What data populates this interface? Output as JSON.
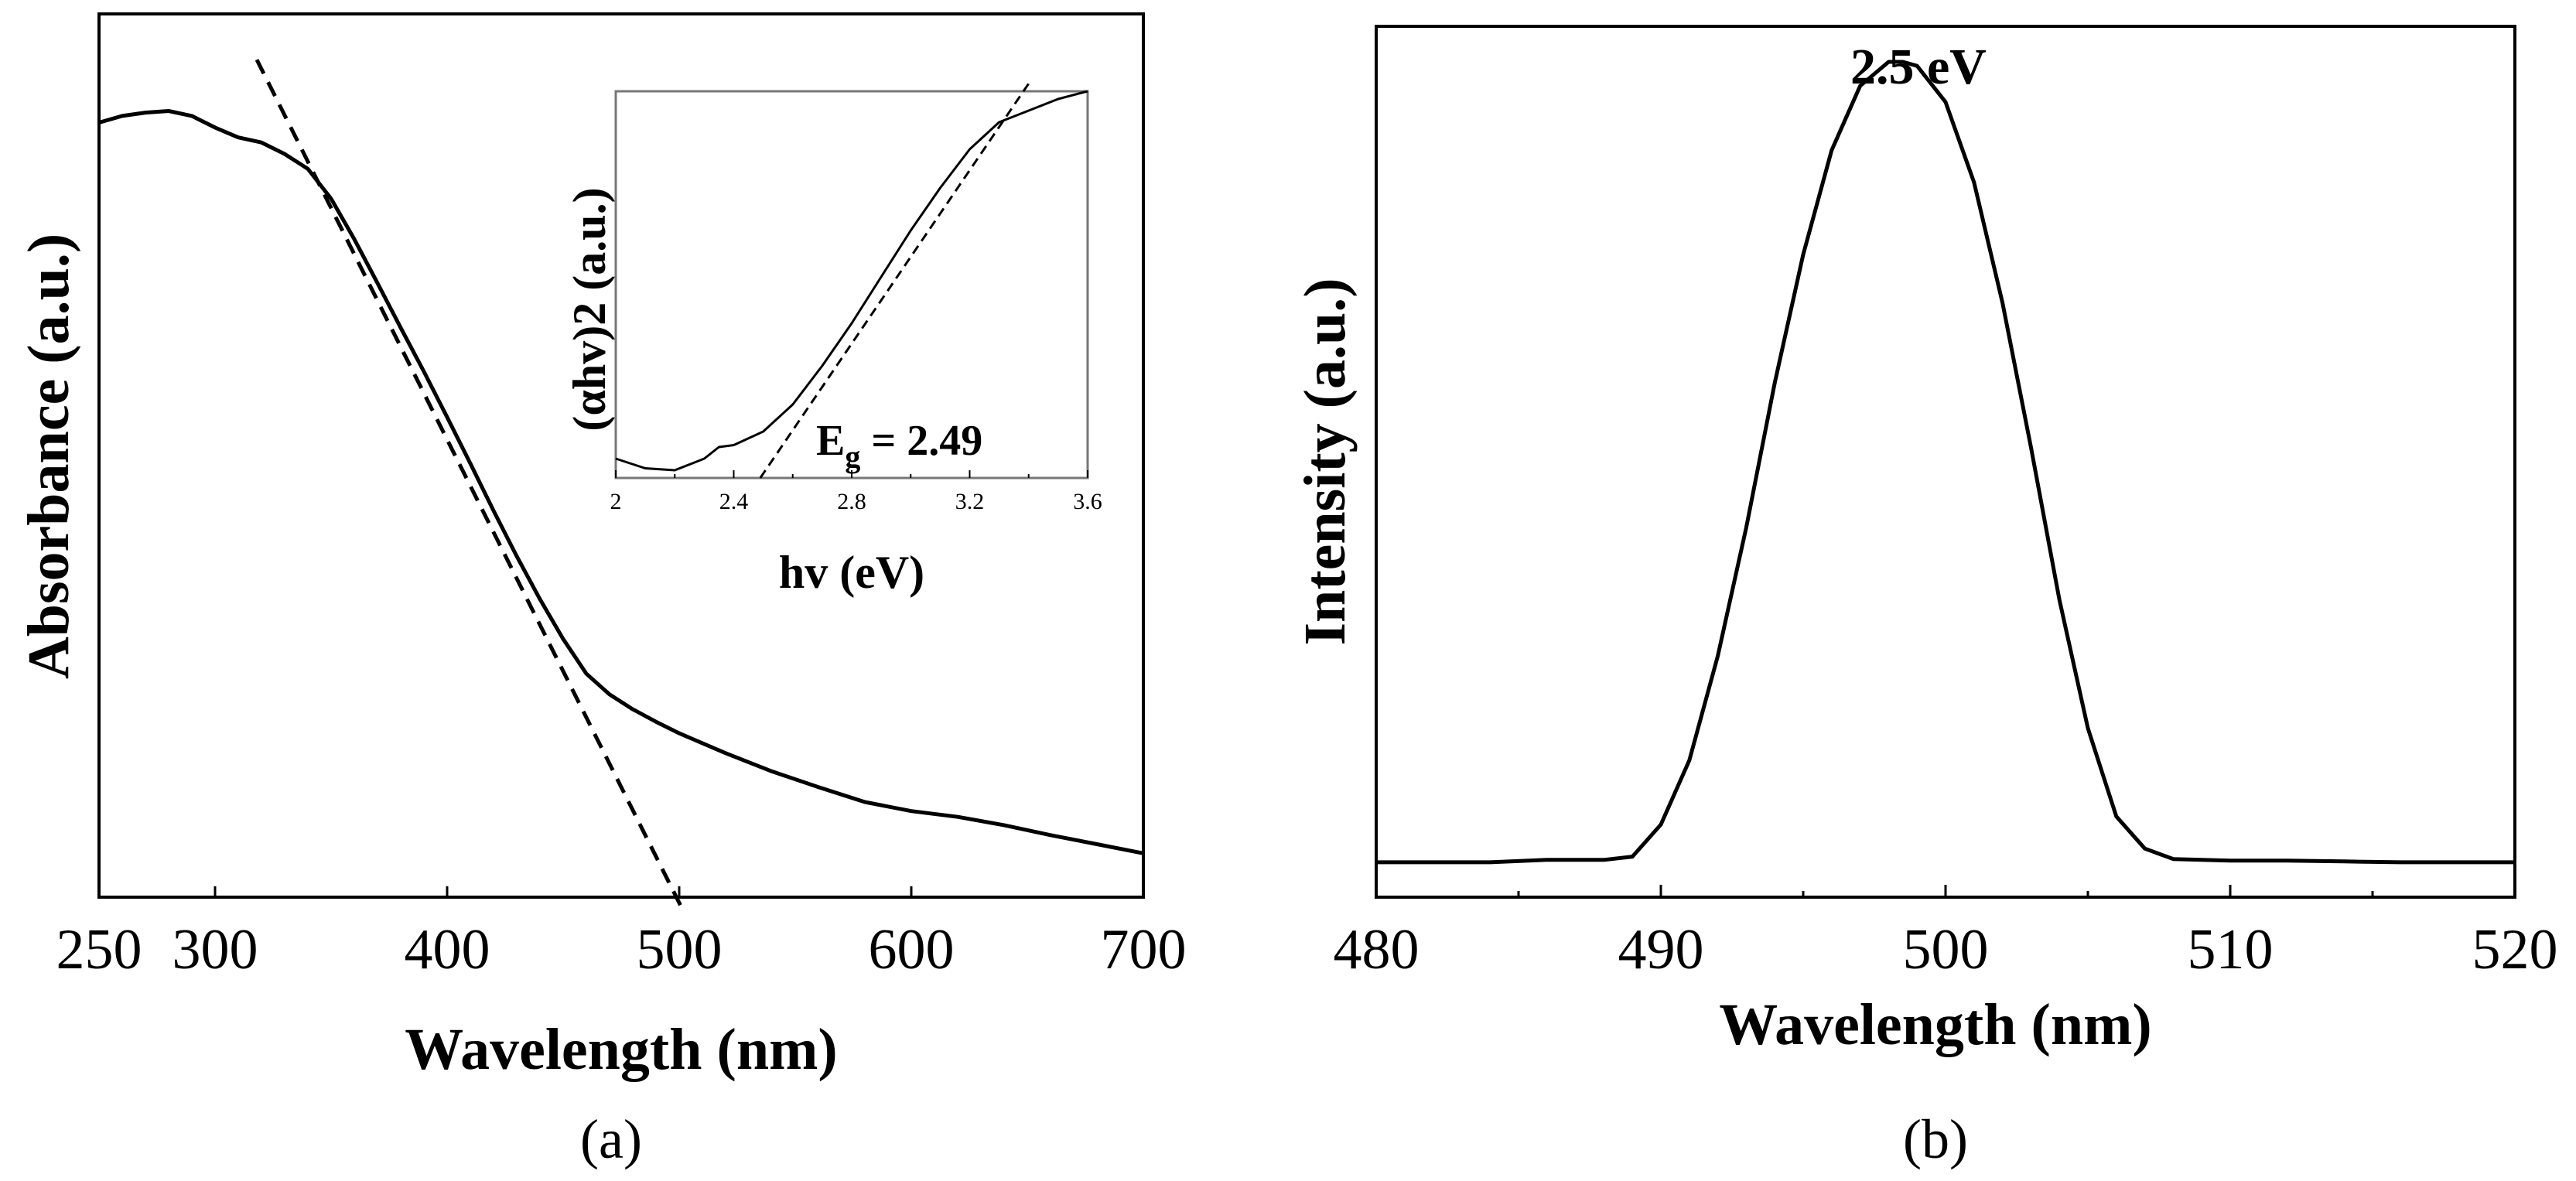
{
  "chart_data": [
    {
      "panel": "a",
      "caption": "(a)",
      "type": "line",
      "title": "",
      "xlabel": "Wavelength (nm)",
      "ylabel": "Absorbance (a.u.)",
      "xlim": [
        250,
        700
      ],
      "ylim": [
        0,
        1
      ],
      "xticks": [
        250,
        300,
        400,
        500,
        600,
        700
      ],
      "xtick_labels": [
        "250",
        "300",
        "400",
        "500",
        "600",
        "700"
      ],
      "series": [
        {
          "name": "absorbance",
          "style": "solid",
          "x": [
            250,
            260,
            270,
            280,
            290,
            300,
            310,
            320,
            330,
            340,
            350,
            360,
            370,
            380,
            390,
            400,
            410,
            420,
            430,
            440,
            450,
            460,
            470,
            480,
            490,
            500,
            520,
            540,
            560,
            580,
            600,
            620,
            640,
            660,
            680,
            700
          ],
          "y": [
            0.936,
            0.944,
            0.948,
            0.95,
            0.944,
            0.93,
            0.918,
            0.912,
            0.898,
            0.88,
            0.844,
            0.795,
            0.742,
            0.688,
            0.635,
            0.58,
            0.524,
            0.467,
            0.412,
            0.36,
            0.312,
            0.27,
            0.245,
            0.227,
            0.212,
            0.198,
            0.174,
            0.152,
            0.133,
            0.115,
            0.104,
            0.097,
            0.087,
            0.075,
            0.064,
            0.053
          ]
        },
        {
          "name": "linear fit",
          "style": "dashed",
          "x": [
            318,
            502
          ],
          "y": [
            1.012,
            -0.018
          ]
        }
      ],
      "inset": {
        "type": "line",
        "xlabel": "hv (eV)",
        "ylabel": "(αhv)2 (a.u.)",
        "xlim": [
          2.0,
          3.6
        ],
        "ylim": [
          0,
          1
        ],
        "xticks": [
          2.0,
          2.4,
          2.8,
          3.2,
          3.6
        ],
        "xtick_labels": [
          "2",
          "2.4",
          "2.8",
          "3.2",
          "3.6"
        ],
        "annotation": {
          "text": "Eg = 2.49",
          "main": "E",
          "sub": "g",
          "rest": " = 2.49",
          "value": 2.49
        },
        "series": [
          {
            "name": "tauc",
            "style": "solid",
            "x": [
              2.0,
              2.1,
              2.2,
              2.3,
              2.35,
              2.4,
              2.5,
              2.6,
              2.7,
              2.8,
              2.9,
              3.0,
              3.1,
              3.2,
              3.3,
              3.4,
              3.5,
              3.6
            ],
            "y": [
              0.05,
              0.025,
              0.02,
              0.05,
              0.08,
              0.085,
              0.12,
              0.19,
              0.29,
              0.4,
              0.52,
              0.64,
              0.75,
              0.85,
              0.92,
              0.95,
              0.98,
              1.0
            ]
          },
          {
            "name": "tangent",
            "style": "dashed",
            "x": [
              2.49,
              3.4
            ],
            "y": [
              0.0,
              1.02
            ]
          }
        ]
      }
    },
    {
      "panel": "b",
      "caption": "(b)",
      "type": "line",
      "title": "",
      "xlabel": "Wavelength (nm)",
      "ylabel": "Intensity (a.u.)",
      "xlim": [
        480,
        520
      ],
      "ylim": [
        0,
        1.08
      ],
      "xticks": [
        480,
        490,
        500,
        510,
        520
      ],
      "xtick_labels": [
        "480",
        "490",
        "500",
        "510",
        "520"
      ],
      "annotation": {
        "text": "2.5 eV",
        "x": 498.5
      },
      "series": [
        {
          "name": "PL",
          "style": "solid",
          "x": [
            480,
            484,
            486,
            488,
            489,
            490,
            491,
            492,
            493,
            494,
            495,
            496,
            497,
            498,
            498.5,
            499,
            500,
            501,
            502,
            503,
            504,
            505,
            506,
            507,
            508,
            510,
            512,
            514,
            516,
            518,
            520
          ],
          "y": [
            0.003,
            0.003,
            0.006,
            0.006,
            0.01,
            0.05,
            0.13,
            0.26,
            0.42,
            0.6,
            0.76,
            0.89,
            0.97,
            1.0,
            1.0,
            0.995,
            0.95,
            0.85,
            0.7,
            0.52,
            0.33,
            0.17,
            0.06,
            0.02,
            0.007,
            0.005,
            0.005,
            0.004,
            0.003,
            0.003,
            0.003
          ]
        }
      ]
    }
  ]
}
